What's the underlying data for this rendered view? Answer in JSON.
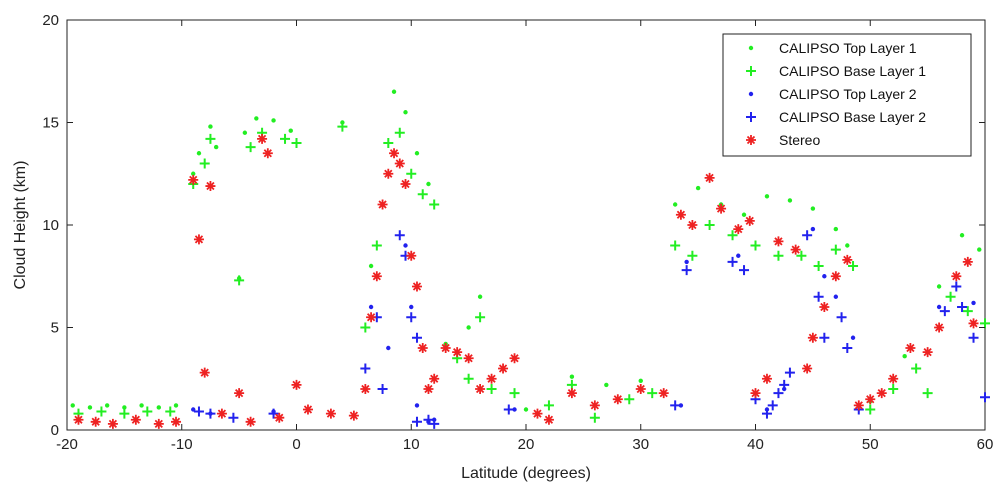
{
  "chart_data": {
    "type": "scatter",
    "title": "",
    "xlabel": "Latitude (degrees)",
    "ylabel": "Cloud Height (km)",
    "xlim": [
      -20,
      60
    ],
    "ylim": [
      0,
      20
    ],
    "xticks": [
      -20,
      -10,
      0,
      10,
      20,
      30,
      40,
      50,
      60
    ],
    "yticks": [
      0,
      5,
      10,
      15,
      20
    ],
    "grid": false,
    "legend_position": "top-right",
    "series": [
      {
        "name": "CALIPSO Top Layer 1",
        "color": "#22ee22",
        "marker": "dot",
        "points": [
          [
            -19.5,
            1.2
          ],
          [
            -18,
            1.1
          ],
          [
            -16.5,
            1.2
          ],
          [
            -15,
            1.1
          ],
          [
            -13.5,
            1.2
          ],
          [
            -12,
            1.1
          ],
          [
            -10.5,
            1.2
          ],
          [
            -9,
            12.5
          ],
          [
            -8.5,
            13.5
          ],
          [
            -7.5,
            14.8
          ],
          [
            -7,
            13.8
          ],
          [
            -5,
            7.4
          ],
          [
            -4.5,
            14.5
          ],
          [
            -3.5,
            15.2
          ],
          [
            -2,
            15.1
          ],
          [
            -0.5,
            14.6
          ],
          [
            4,
            15
          ],
          [
            6.5,
            8
          ],
          [
            7.5,
            11
          ],
          [
            8.5,
            16.5
          ],
          [
            9.5,
            15.5
          ],
          [
            10.5,
            13.5
          ],
          [
            11.5,
            12
          ],
          [
            13,
            4.2
          ],
          [
            15,
            5
          ],
          [
            16,
            6.5
          ],
          [
            18,
            3
          ],
          [
            20,
            1
          ],
          [
            24,
            2.6
          ],
          [
            27,
            2.2
          ],
          [
            30,
            2.4
          ],
          [
            33,
            11
          ],
          [
            35,
            11.8
          ],
          [
            37,
            11
          ],
          [
            39,
            10.5
          ],
          [
            41,
            11.4
          ],
          [
            43,
            11.2
          ],
          [
            45,
            10.8
          ],
          [
            47,
            9.8
          ],
          [
            48,
            9
          ],
          [
            50,
            1.4
          ],
          [
            53,
            3.6
          ],
          [
            56,
            7
          ],
          [
            58,
            9.5
          ],
          [
            59.5,
            8.8
          ]
        ]
      },
      {
        "name": "CALIPSO Base Layer 1",
        "color": "#22ee22",
        "marker": "plus",
        "points": [
          [
            -19,
            0.8
          ],
          [
            -17,
            0.9
          ],
          [
            -15,
            0.8
          ],
          [
            -13,
            0.9
          ],
          [
            -11,
            0.9
          ],
          [
            -9,
            12
          ],
          [
            -8,
            13
          ],
          [
            -7.5,
            14.2
          ],
          [
            -5,
            7.3
          ],
          [
            -4,
            13.8
          ],
          [
            -3,
            14.5
          ],
          [
            -1,
            14.2
          ],
          [
            0,
            14
          ],
          [
            4,
            14.8
          ],
          [
            6,
            5
          ],
          [
            7,
            9
          ],
          [
            8,
            14
          ],
          [
            9,
            14.5
          ],
          [
            10,
            12.5
          ],
          [
            11,
            11.5
          ],
          [
            12,
            11
          ],
          [
            14,
            3.5
          ],
          [
            15,
            2.5
          ],
          [
            16,
            5.5
          ],
          [
            17,
            2
          ],
          [
            19,
            1.8
          ],
          [
            22,
            1.2
          ],
          [
            24,
            2.2
          ],
          [
            26,
            0.6
          ],
          [
            29,
            1.5
          ],
          [
            31,
            1.8
          ],
          [
            33,
            9
          ],
          [
            34.5,
            8.5
          ],
          [
            36,
            10
          ],
          [
            38,
            9.5
          ],
          [
            40,
            9
          ],
          [
            42,
            8.5
          ],
          [
            44,
            8.5
          ],
          [
            45.5,
            8
          ],
          [
            47,
            8.8
          ],
          [
            48.5,
            8
          ],
          [
            50,
            1
          ],
          [
            52,
            2
          ],
          [
            54,
            3
          ],
          [
            55,
            1.8
          ],
          [
            57,
            6.5
          ],
          [
            58.5,
            5.8
          ],
          [
            60,
            5.2
          ]
        ]
      },
      {
        "name": "CALIPSO Top Layer 2",
        "color": "#2222ee",
        "marker": "dot",
        "points": [
          [
            -9,
            1
          ],
          [
            -7.5,
            0.8
          ],
          [
            -2,
            0.9
          ],
          [
            6.5,
            6
          ],
          [
            8,
            4
          ],
          [
            9.5,
            9
          ],
          [
            10,
            6
          ],
          [
            10.5,
            1.2
          ],
          [
            11.5,
            0.4
          ],
          [
            12,
            0.5
          ],
          [
            19,
            1
          ],
          [
            33.5,
            1.2
          ],
          [
            34,
            8.2
          ],
          [
            38.5,
            8.5
          ],
          [
            41,
            1
          ],
          [
            42.5,
            2
          ],
          [
            45,
            9.8
          ],
          [
            46,
            7.5
          ],
          [
            47,
            6.5
          ],
          [
            48.5,
            4.5
          ],
          [
            56,
            6
          ],
          [
            57.5,
            7.5
          ],
          [
            59,
            6.2
          ]
        ]
      },
      {
        "name": "CALIPSO Base Layer 2",
        "color": "#2222ee",
        "marker": "plus",
        "points": [
          [
            -8.5,
            0.9
          ],
          [
            -7.5,
            0.8
          ],
          [
            -5.5,
            0.6
          ],
          [
            -2,
            0.8
          ],
          [
            6,
            3
          ],
          [
            7,
            5.5
          ],
          [
            7.5,
            2
          ],
          [
            9,
            9.5
          ],
          [
            9.5,
            8.5
          ],
          [
            10,
            5.5
          ],
          [
            10.5,
            4.5
          ],
          [
            10.5,
            0.4
          ],
          [
            11.5,
            0.5
          ],
          [
            12,
            0.3
          ],
          [
            18.5,
            1
          ],
          [
            33,
            1.2
          ],
          [
            34,
            7.8
          ],
          [
            38,
            8.2
          ],
          [
            39,
            7.8
          ],
          [
            40,
            1.5
          ],
          [
            41,
            0.8
          ],
          [
            41.5,
            1.2
          ],
          [
            42,
            1.8
          ],
          [
            42.5,
            2.2
          ],
          [
            43,
            2.8
          ],
          [
            44.5,
            9.5
          ],
          [
            45.5,
            6.5
          ],
          [
            46,
            4.5
          ],
          [
            47.5,
            5.5
          ],
          [
            48,
            4
          ],
          [
            49,
            1
          ],
          [
            56.5,
            5.8
          ],
          [
            57.5,
            7
          ],
          [
            58,
            6
          ],
          [
            59,
            4.5
          ],
          [
            60,
            1.6
          ]
        ]
      },
      {
        "name": "Stereo",
        "color": "#ee2222",
        "marker": "asterisk",
        "points": [
          [
            -19,
            0.5
          ],
          [
            -17.5,
            0.4
          ],
          [
            -16,
            0.3
          ],
          [
            -14,
            0.5
          ],
          [
            -12,
            0.3
          ],
          [
            -10.5,
            0.4
          ],
          [
            -9,
            12.2
          ],
          [
            -8.5,
            9.3
          ],
          [
            -8,
            2.8
          ],
          [
            -7.5,
            11.9
          ],
          [
            -6.5,
            0.8
          ],
          [
            -5,
            1.8
          ],
          [
            -4,
            0.4
          ],
          [
            -3,
            14.2
          ],
          [
            -2.5,
            13.5
          ],
          [
            -1.5,
            0.6
          ],
          [
            0,
            2.2
          ],
          [
            1,
            1
          ],
          [
            3,
            0.8
          ],
          [
            5,
            0.7
          ],
          [
            6,
            2
          ],
          [
            6.5,
            5.5
          ],
          [
            7,
            7.5
          ],
          [
            7.5,
            11
          ],
          [
            8,
            12.5
          ],
          [
            8.5,
            13.5
          ],
          [
            9,
            13
          ],
          [
            9.5,
            12
          ],
          [
            10,
            8.5
          ],
          [
            10.5,
            7
          ],
          [
            11,
            4
          ],
          [
            11.5,
            2
          ],
          [
            12,
            2.5
          ],
          [
            13,
            4
          ],
          [
            14,
            3.8
          ],
          [
            15,
            3.5
          ],
          [
            16,
            2
          ],
          [
            17,
            2.5
          ],
          [
            18,
            3
          ],
          [
            19,
            3.5
          ],
          [
            21,
            0.8
          ],
          [
            22,
            0.5
          ],
          [
            24,
            1.8
          ],
          [
            26,
            1.2
          ],
          [
            28,
            1.5
          ],
          [
            30,
            2
          ],
          [
            32,
            1.8
          ],
          [
            33.5,
            10.5
          ],
          [
            34.5,
            10
          ],
          [
            36,
            12.3
          ],
          [
            37,
            10.8
          ],
          [
            38.5,
            9.8
          ],
          [
            39.5,
            10.2
          ],
          [
            40,
            1.8
          ],
          [
            41,
            2.5
          ],
          [
            42,
            9.2
          ],
          [
            43.5,
            8.8
          ],
          [
            44.5,
            3
          ],
          [
            45,
            4.5
          ],
          [
            46,
            6
          ],
          [
            47,
            7.5
          ],
          [
            48,
            8.3
          ],
          [
            49,
            1.2
          ],
          [
            50,
            1.5
          ],
          [
            51,
            1.8
          ],
          [
            52,
            2.5
          ],
          [
            53.5,
            4
          ],
          [
            55,
            3.8
          ],
          [
            56,
            5
          ],
          [
            57.5,
            7.5
          ],
          [
            58.5,
            8.2
          ],
          [
            59,
            5.2
          ]
        ]
      }
    ]
  }
}
